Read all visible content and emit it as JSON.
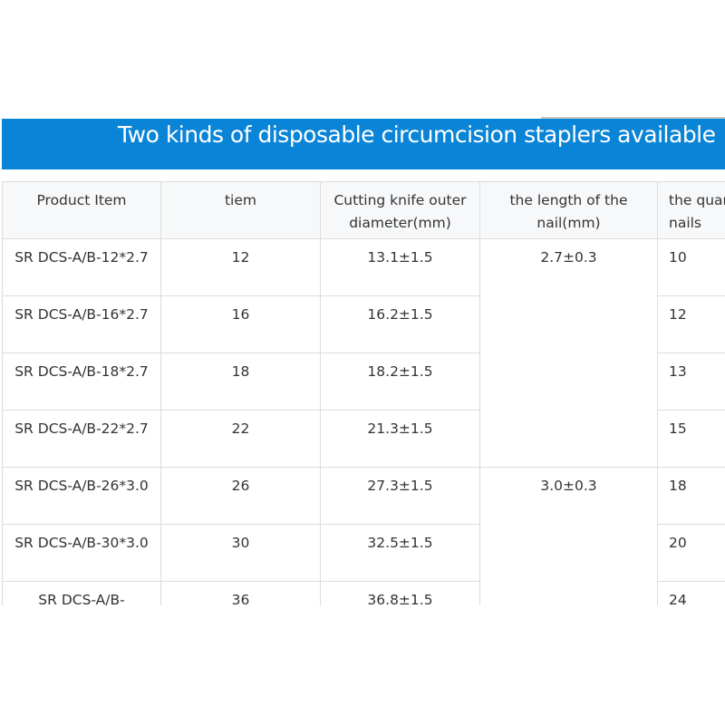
{
  "banner": {
    "title": "Two kinds of disposable circumcision staplers available"
  },
  "table": {
    "headers": [
      "Product Item",
      "tiem",
      "Cutting knife outer diameter(mm)",
      "the length of the nail(mm)",
      "the quantity of the nails"
    ],
    "rows": [
      {
        "item": "SR DCS-A/B-12*2.7",
        "tiem": "12",
        "diameter": "13.1±1.5",
        "qty": "10"
      },
      {
        "item": "SR DCS-A/B-16*2.7",
        "tiem": "16",
        "diameter": "16.2±1.5",
        "qty": "12"
      },
      {
        "item": "SR DCS-A/B-18*2.7",
        "tiem": "18",
        "diameter": "18.2±1.5",
        "qty": "13"
      },
      {
        "item": "SR DCS-A/B-22*2.7",
        "tiem": "22",
        "diameter": "21.3±1.5",
        "qty": "15"
      },
      {
        "item": "SR DCS-A/B-26*3.0",
        "tiem": "26",
        "diameter": "27.3±1.5",
        "qty": "18"
      },
      {
        "item": "SR DCS-A/B-30*3.0",
        "tiem": "30",
        "diameter": "32.5±1.5",
        "qty": "20"
      },
      {
        "item": "SR DCS-A/B-",
        "tiem": "36",
        "diameter": "36.8±1.5",
        "qty": "24"
      }
    ],
    "nail_groups": [
      "2.7±0.3",
      "3.0±0.3"
    ]
  }
}
